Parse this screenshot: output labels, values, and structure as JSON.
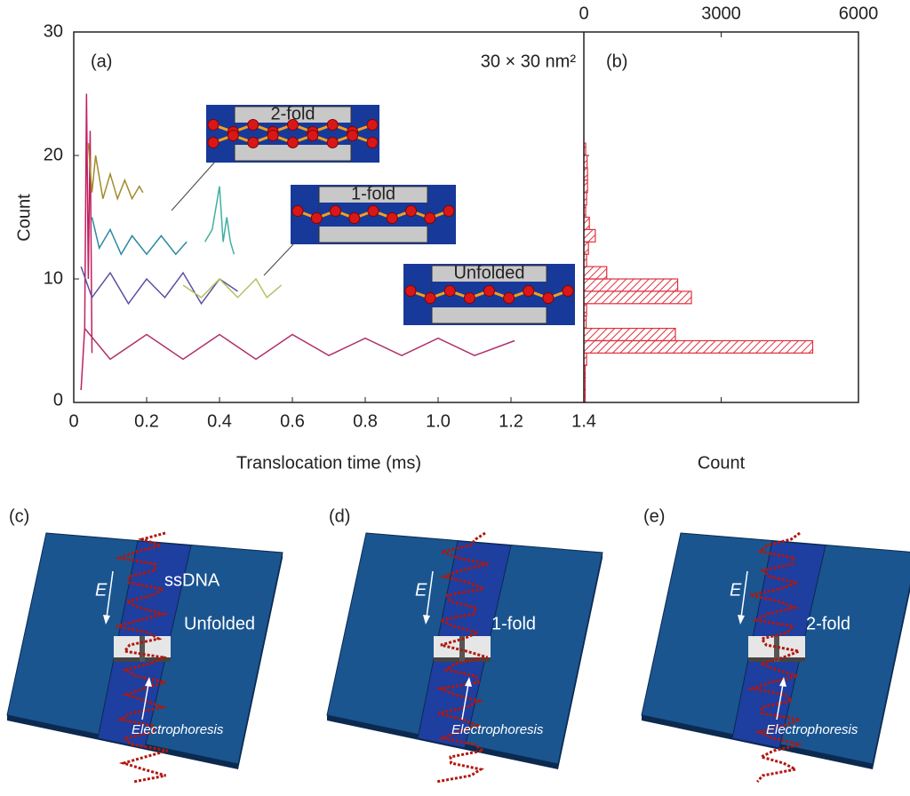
{
  "chart_data": [
    {
      "type": "line",
      "xlabel": "Translocation time (ms)",
      "ylabel": "Count",
      "panel": "(a)",
      "annotation": "30 × 30 nm²",
      "insets": [
        "2-fold",
        "1-fold",
        "Unfolded"
      ],
      "xlim": [
        0,
        1.4
      ],
      "xticks": [
        0,
        0.2,
        0.4,
        0.6,
        0.8,
        {
          "value": 1.0,
          "label": "1.0"
        },
        1.2,
        1.4
      ],
      "ylim": [
        0,
        30
      ],
      "yticks": [
        10,
        20,
        30
      ],
      "series": [
        {
          "color": "#c02060",
          "x": [
            0.02,
            0.03,
            0.035,
            0.04,
            0.045,
            0.05
          ],
          "values": [
            1,
            6,
            25,
            10,
            22,
            4
          ]
        },
        {
          "color": "#a08c2a",
          "x": [
            0.04,
            0.05,
            0.06,
            0.08,
            0.1,
            0.12,
            0.14,
            0.16,
            0.18,
            0.19
          ],
          "values": [
            21,
            17,
            20,
            16.5,
            18.5,
            16.5,
            18,
            16.5,
            17.5,
            17
          ]
        },
        {
          "color": "#2a8aa0",
          "x": [
            0.05,
            0.07,
            0.1,
            0.13,
            0.16,
            0.2,
            0.24,
            0.28,
            0.31
          ],
          "values": [
            15,
            12.5,
            14,
            12,
            13.5,
            12,
            13.5,
            12,
            13
          ]
        },
        {
          "color": "#40b0a0",
          "x": [
            0.36,
            0.38,
            0.4,
            0.41,
            0.42,
            0.43,
            0.44
          ],
          "values": [
            13,
            14,
            17.5,
            13,
            15,
            13,
            12
          ]
        },
        {
          "color": "#5a50a0",
          "x": [
            0.02,
            0.05,
            0.1,
            0.15,
            0.2,
            0.25,
            0.3,
            0.35,
            0.4,
            0.45
          ],
          "values": [
            11,
            8.5,
            10.5,
            8,
            10,
            8.5,
            10.5,
            8,
            10,
            9
          ]
        },
        {
          "color": "#b8c060",
          "x": [
            0.3,
            0.35,
            0.4,
            0.45,
            0.5,
            0.53,
            0.57
          ],
          "values": [
            9.5,
            8.5,
            10,
            8.5,
            10,
            8.5,
            9.5
          ]
        },
        {
          "color": "#b0306a",
          "x": [
            0.03,
            0.1,
            0.2,
            0.3,
            0.4,
            0.5,
            0.6,
            0.7,
            0.8,
            0.9,
            1.0,
            1.1,
            1.21
          ],
          "values": [
            6,
            3.5,
            5.5,
            3.5,
            5.5,
            3.5,
            5.5,
            3.8,
            5.2,
            3.8,
            5.2,
            3.8,
            5
          ]
        }
      ]
    },
    {
      "type": "histogram",
      "orientation": "horizontal",
      "panel": "(b)",
      "xlabel": "Count",
      "color": "#e03040",
      "xlim": [
        0,
        6000
      ],
      "xticks": [
        0,
        3000,
        6000
      ],
      "ylim": [
        0,
        30
      ],
      "bins": [
        0,
        1,
        2,
        3,
        4,
        5,
        6,
        7,
        8,
        9,
        10,
        11,
        12,
        13,
        14,
        15,
        16,
        17,
        18,
        19,
        20,
        21
      ],
      "values": [
        30,
        30,
        30,
        60,
        5000,
        2000,
        50,
        60,
        2350,
        2050,
        500,
        60,
        100,
        250,
        120,
        40,
        60,
        80,
        80,
        70,
        40
      ]
    }
  ],
  "panels": [
    {
      "label": "(c)",
      "field": "E",
      "strand": "ssDNA",
      "state": "Unfolded",
      "flow": "Electrophoresis"
    },
    {
      "label": "(d)",
      "field": "E",
      "state": "1-fold",
      "flow": "Electrophoresis"
    },
    {
      "label": "(e)",
      "field": "E",
      "state": "2-fold",
      "flow": "Electrophoresis"
    }
  ]
}
